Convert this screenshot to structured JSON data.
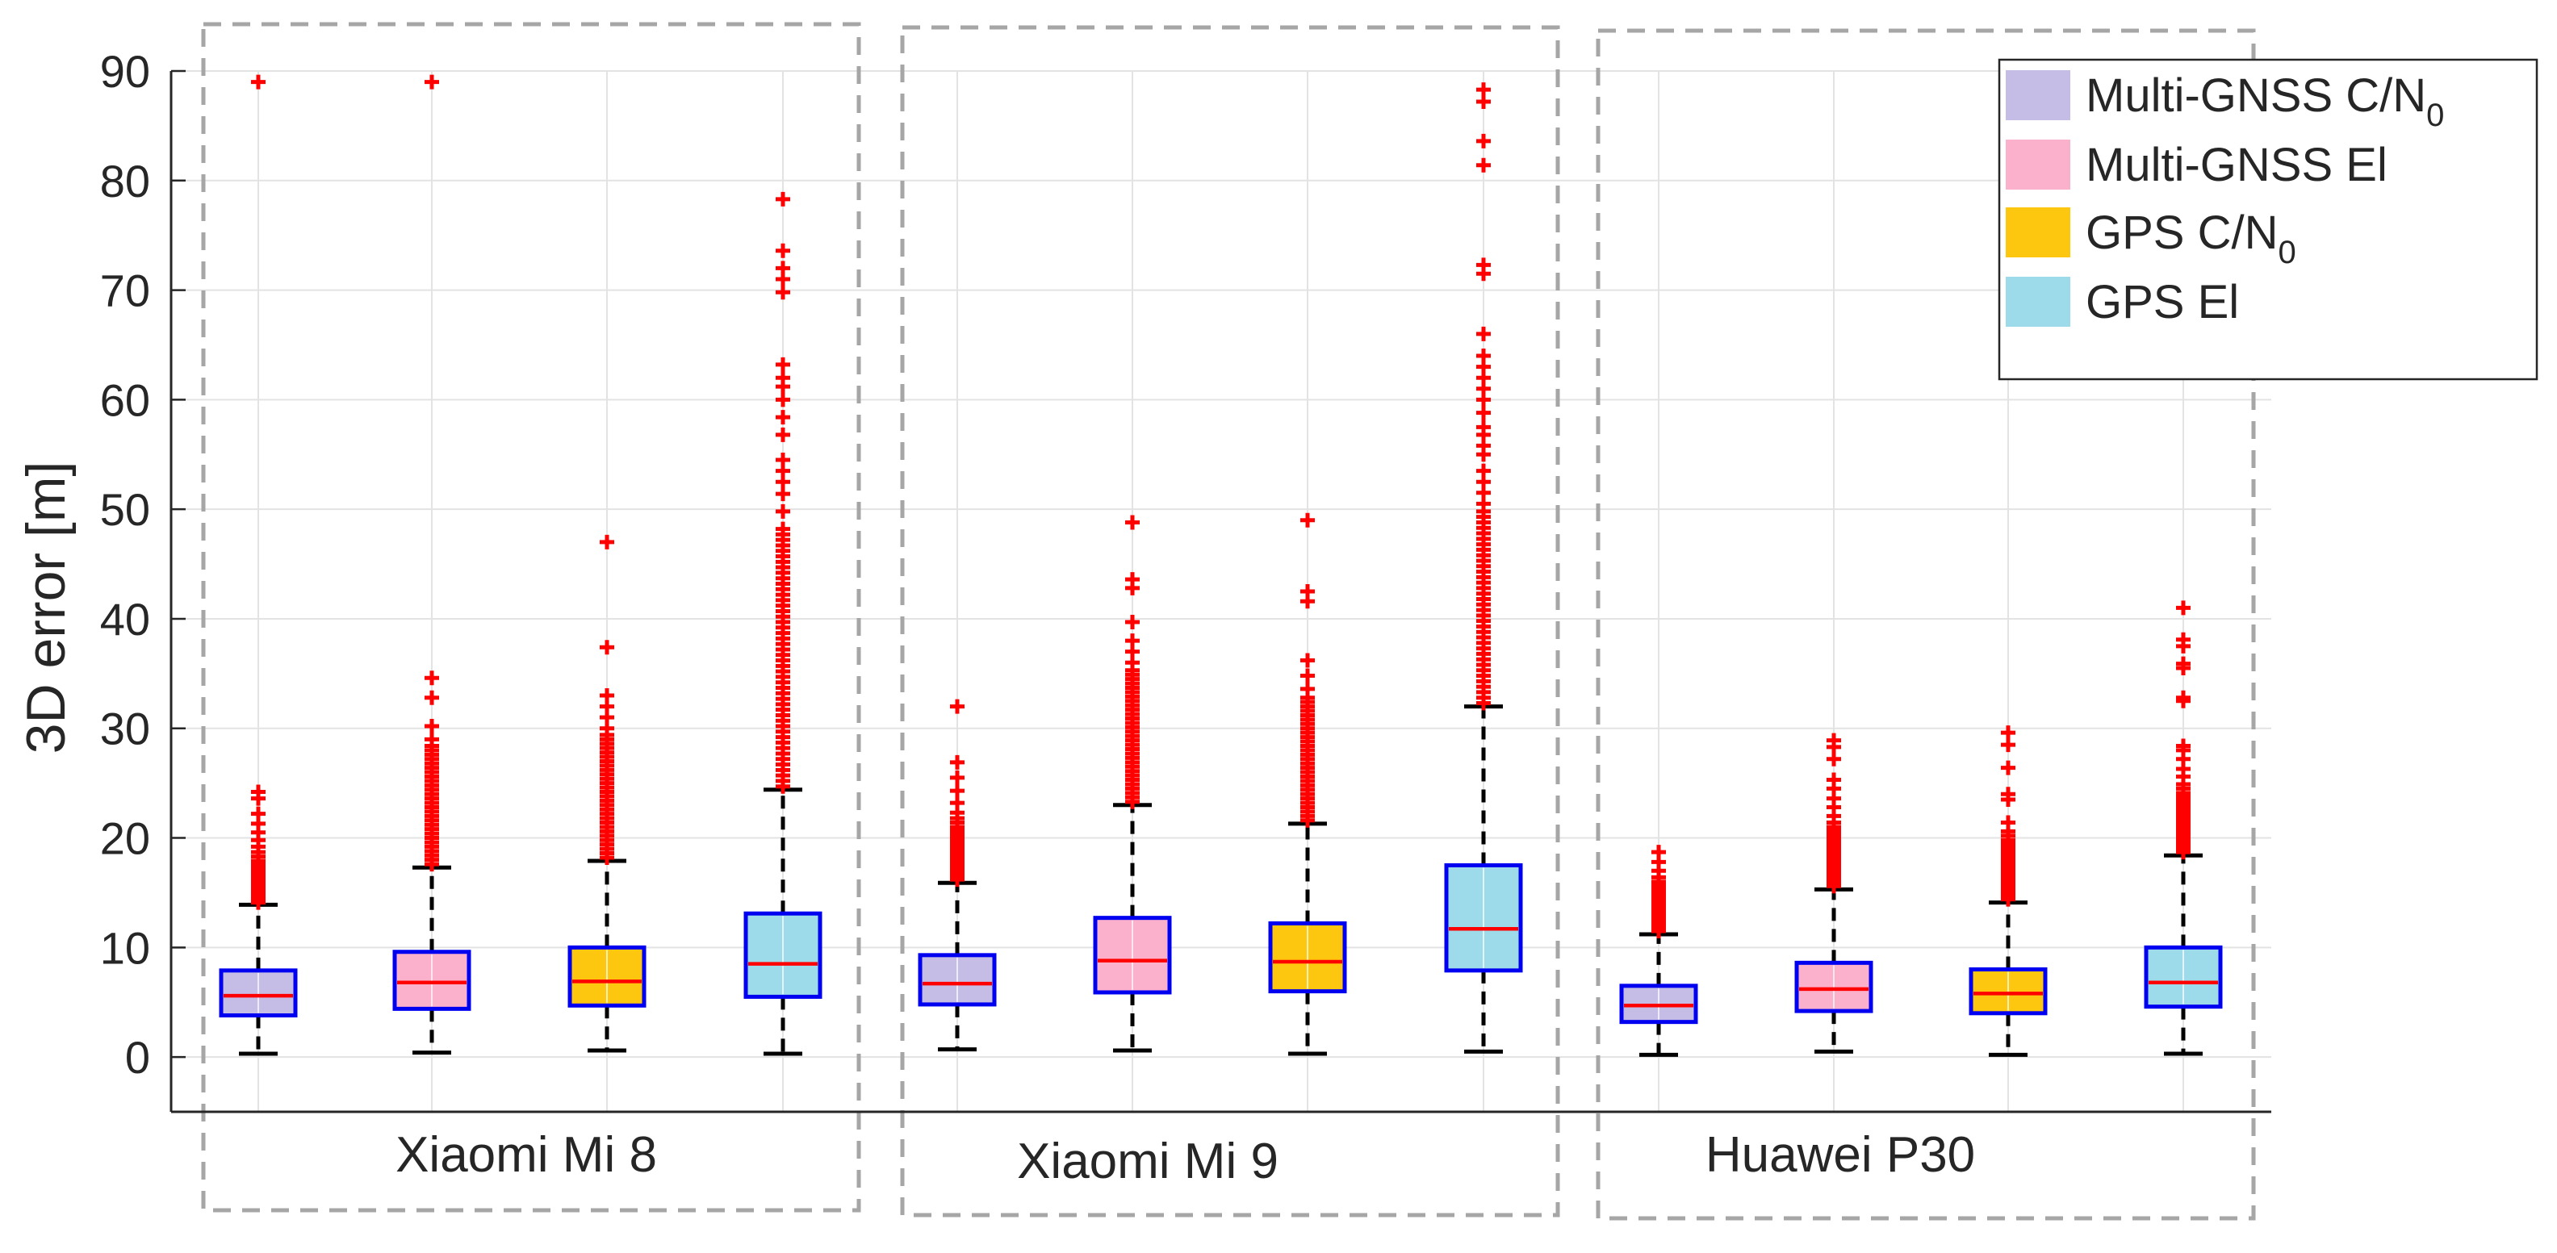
{
  "chart_data": {
    "type": "boxplot",
    "title": "",
    "xlabel": "",
    "ylabel": "3D error [m]",
    "ylim": [
      -5,
      90
    ],
    "yticks": [
      0,
      10,
      20,
      30,
      40,
      50,
      60,
      70,
      80,
      90
    ],
    "grid": true,
    "legend_position": "top-right",
    "groups": [
      "Xiaomi Mi 8",
      "Xiaomi Mi 9",
      "Huawei P30"
    ],
    "series": [
      {
        "name": "Multi-GNSS C/N0",
        "label_main": "Multi-GNSS C/N",
        "label_sub": "0",
        "color": "#c5bde6"
      },
      {
        "name": "Multi-GNSS El",
        "label_main": "Multi-GNSS El",
        "label_sub": "",
        "color": "#fbb0cc"
      },
      {
        "name": "GPS C/N0",
        "label_main": "GPS C/N",
        "label_sub": "0",
        "color": "#fec70f"
      },
      {
        "name": "GPS El",
        "label_main": "GPS El",
        "label_sub": "",
        "color": "#9edbea"
      }
    ],
    "boxes": [
      {
        "group": "Xiaomi Mi 8",
        "series": "Multi-GNSS C/N0",
        "whisker_low": 0.3,
        "q1": 3.8,
        "median": 5.6,
        "q3": 7.9,
        "whisker_high": 13.9,
        "outliers": [
          14.1,
          14.3,
          14.6,
          14.9,
          15.2,
          15.5,
          15.8,
          16.1,
          16.4,
          16.7,
          17.0,
          17.3,
          17.6,
          17.9,
          18.3,
          18.7,
          19.2,
          19.8,
          20.5,
          21.3,
          22.2,
          23.6,
          24.2,
          89.0
        ]
      },
      {
        "group": "Xiaomi Mi 8",
        "series": "Multi-GNSS El",
        "whisker_low": 0.4,
        "q1": 4.4,
        "median": 6.8,
        "q3": 9.6,
        "whisker_high": 17.3,
        "outliers": [
          17.6,
          18.0,
          18.4,
          18.8,
          19.2,
          19.6,
          20.0,
          20.4,
          20.8,
          21.2,
          21.6,
          22.0,
          22.4,
          22.8,
          23.2,
          23.6,
          24.0,
          24.4,
          24.8,
          25.2,
          25.6,
          26.0,
          26.4,
          26.8,
          27.2,
          27.6,
          28.0,
          28.4,
          29.0,
          30.2,
          32.8,
          34.6,
          89.0
        ]
      },
      {
        "group": "Xiaomi Mi 8",
        "series": "GPS C/N0",
        "whisker_low": 0.6,
        "q1": 4.7,
        "median": 6.9,
        "q3": 10.0,
        "whisker_high": 17.9,
        "outliers": [
          18.2,
          18.6,
          19.0,
          19.4,
          19.8,
          20.2,
          20.6,
          21.0,
          21.4,
          21.8,
          22.2,
          22.6,
          23.0,
          23.4,
          23.8,
          24.2,
          24.6,
          25.0,
          25.4,
          25.8,
          26.2,
          26.6,
          27.0,
          27.4,
          27.8,
          28.2,
          28.6,
          29.0,
          29.4,
          30.0,
          31.0,
          32.0,
          33.0,
          37.4,
          47.0
        ]
      },
      {
        "group": "Xiaomi Mi 8",
        "series": "GPS El",
        "whisker_low": 0.3,
        "q1": 5.5,
        "median": 8.5,
        "q3": 13.1,
        "whisker_high": 24.4,
        "outliers": [
          24.7,
          25.2,
          25.7,
          26.2,
          26.7,
          27.2,
          27.7,
          28.2,
          28.7,
          29.2,
          29.7,
          30.2,
          30.7,
          31.2,
          31.7,
          32.2,
          32.7,
          33.2,
          33.7,
          34.2,
          34.7,
          35.2,
          35.7,
          36.2,
          36.7,
          37.2,
          37.7,
          38.2,
          38.7,
          39.2,
          39.7,
          40.2,
          40.7,
          41.2,
          41.7,
          42.2,
          42.7,
          43.2,
          43.7,
          44.2,
          44.7,
          45.2,
          45.7,
          46.2,
          46.7,
          47.2,
          47.7,
          48.2,
          49.8,
          51.4,
          52.5,
          53.5,
          54.5,
          56.8,
          58.4,
          60.0,
          61.2,
          62.0,
          63.2,
          69.8,
          71.0,
          72.0,
          73.6,
          78.3
        ]
      },
      {
        "group": "Xiaomi Mi 9",
        "series": "Multi-GNSS C/N0",
        "whisker_low": 0.7,
        "q1": 4.8,
        "median": 6.7,
        "q3": 9.3,
        "whisker_high": 15.9,
        "outliers": [
          16.2,
          16.5,
          16.8,
          17.1,
          17.4,
          17.7,
          18.0,
          18.3,
          18.6,
          18.9,
          19.2,
          19.5,
          19.8,
          20.1,
          20.4,
          20.7,
          21.0,
          21.4,
          21.8,
          22.3,
          23.2,
          24.3,
          25.5,
          26.9,
          32.0
        ]
      },
      {
        "group": "Xiaomi Mi 9",
        "series": "Multi-GNSS El",
        "whisker_low": 0.6,
        "q1": 5.9,
        "median": 8.8,
        "q3": 12.7,
        "whisker_high": 23.0,
        "outliers": [
          23.3,
          23.7,
          24.1,
          24.5,
          24.9,
          25.3,
          25.7,
          26.1,
          26.5,
          26.9,
          27.3,
          27.7,
          28.1,
          28.5,
          28.9,
          29.3,
          29.7,
          30.1,
          30.5,
          30.9,
          31.3,
          31.7,
          32.1,
          32.5,
          32.9,
          33.3,
          33.7,
          34.1,
          34.5,
          34.9,
          35.3,
          36.0,
          37.0,
          38.0,
          39.7,
          42.8,
          43.6,
          48.8
        ]
      },
      {
        "group": "Xiaomi Mi 9",
        "series": "GPS C/N0",
        "whisker_low": 0.3,
        "q1": 6.0,
        "median": 8.7,
        "q3": 12.2,
        "whisker_high": 21.3,
        "outliers": [
          21.6,
          22.0,
          22.4,
          22.8,
          23.2,
          23.6,
          24.0,
          24.4,
          24.8,
          25.2,
          25.6,
          26.0,
          26.4,
          26.8,
          27.2,
          27.6,
          28.0,
          28.4,
          28.8,
          29.2,
          29.6,
          30.0,
          30.4,
          30.8,
          31.2,
          31.6,
          32.0,
          32.4,
          32.8,
          33.6,
          34.8,
          36.2,
          41.6,
          42.5,
          49.0
        ]
      },
      {
        "group": "Xiaomi Mi 9",
        "series": "GPS El",
        "whisker_low": 0.5,
        "q1": 7.9,
        "median": 11.7,
        "q3": 17.5,
        "whisker_high": 32.0,
        "outliers": [
          32.3,
          32.8,
          33.3,
          33.8,
          34.3,
          34.8,
          35.3,
          35.8,
          36.3,
          36.8,
          37.3,
          37.8,
          38.3,
          38.8,
          39.3,
          39.8,
          40.3,
          40.8,
          41.3,
          41.8,
          42.3,
          42.8,
          43.3,
          43.8,
          44.3,
          44.8,
          45.3,
          45.8,
          46.3,
          46.8,
          47.3,
          47.8,
          48.3,
          48.8,
          49.3,
          49.8,
          50.5,
          51.5,
          52.5,
          53.5,
          55.0,
          55.8,
          56.8,
          57.5,
          58.8,
          60.0,
          61.0,
          62.0,
          63.0,
          64.0,
          66.0,
          71.5,
          72.3,
          81.4,
          83.6,
          87.2,
          88.3
        ]
      },
      {
        "group": "Huawei P30",
        "series": "Multi-GNSS C/N0",
        "whisker_low": 0.2,
        "q1": 3.2,
        "median": 4.7,
        "q3": 6.5,
        "whisker_high": 11.2,
        "outliers": [
          11.5,
          11.8,
          12.1,
          12.4,
          12.7,
          13.0,
          13.3,
          13.6,
          13.9,
          14.2,
          14.5,
          14.8,
          15.1,
          15.4,
          15.7,
          16.0,
          16.4,
          17.0,
          17.8,
          18.7
        ]
      },
      {
        "group": "Huawei P30",
        "series": "Multi-GNSS El",
        "whisker_low": 0.5,
        "q1": 4.2,
        "median": 6.2,
        "q3": 8.6,
        "whisker_high": 15.3,
        "outliers": [
          15.6,
          15.9,
          16.2,
          16.5,
          16.8,
          17.1,
          17.4,
          17.7,
          18.0,
          18.3,
          18.6,
          18.9,
          19.2,
          19.5,
          19.8,
          20.1,
          20.4,
          20.7,
          21.0,
          21.4,
          22.0,
          22.8,
          23.6,
          24.5,
          25.3,
          27.2,
          28.3,
          28.9
        ]
      },
      {
        "group": "Huawei P30",
        "series": "GPS C/N0",
        "whisker_low": 0.2,
        "q1": 4.0,
        "median": 5.8,
        "q3": 8.0,
        "whisker_high": 14.1,
        "outliers": [
          14.4,
          14.7,
          15.0,
          15.3,
          15.6,
          15.9,
          16.2,
          16.5,
          16.8,
          17.1,
          17.4,
          17.7,
          18.0,
          18.3,
          18.6,
          18.9,
          19.2,
          19.5,
          19.8,
          20.2,
          20.6,
          21.4,
          23.5,
          24.0,
          26.4,
          28.5,
          29.6
        ]
      },
      {
        "group": "Huawei P30",
        "series": "GPS El",
        "whisker_low": 0.3,
        "q1": 4.6,
        "median": 6.8,
        "q3": 10.0,
        "whisker_high": 18.4,
        "outliers": [
          18.7,
          19.0,
          19.3,
          19.6,
          19.9,
          20.2,
          20.5,
          20.8,
          21.1,
          21.4,
          21.7,
          22.0,
          22.3,
          22.6,
          22.9,
          23.2,
          23.5,
          23.8,
          24.1,
          24.5,
          24.9,
          25.6,
          26.3,
          27.2,
          28.0,
          28.4,
          32.5,
          32.8,
          35.5,
          35.9,
          37.5,
          38.1,
          41.0
        ]
      }
    ]
  }
}
